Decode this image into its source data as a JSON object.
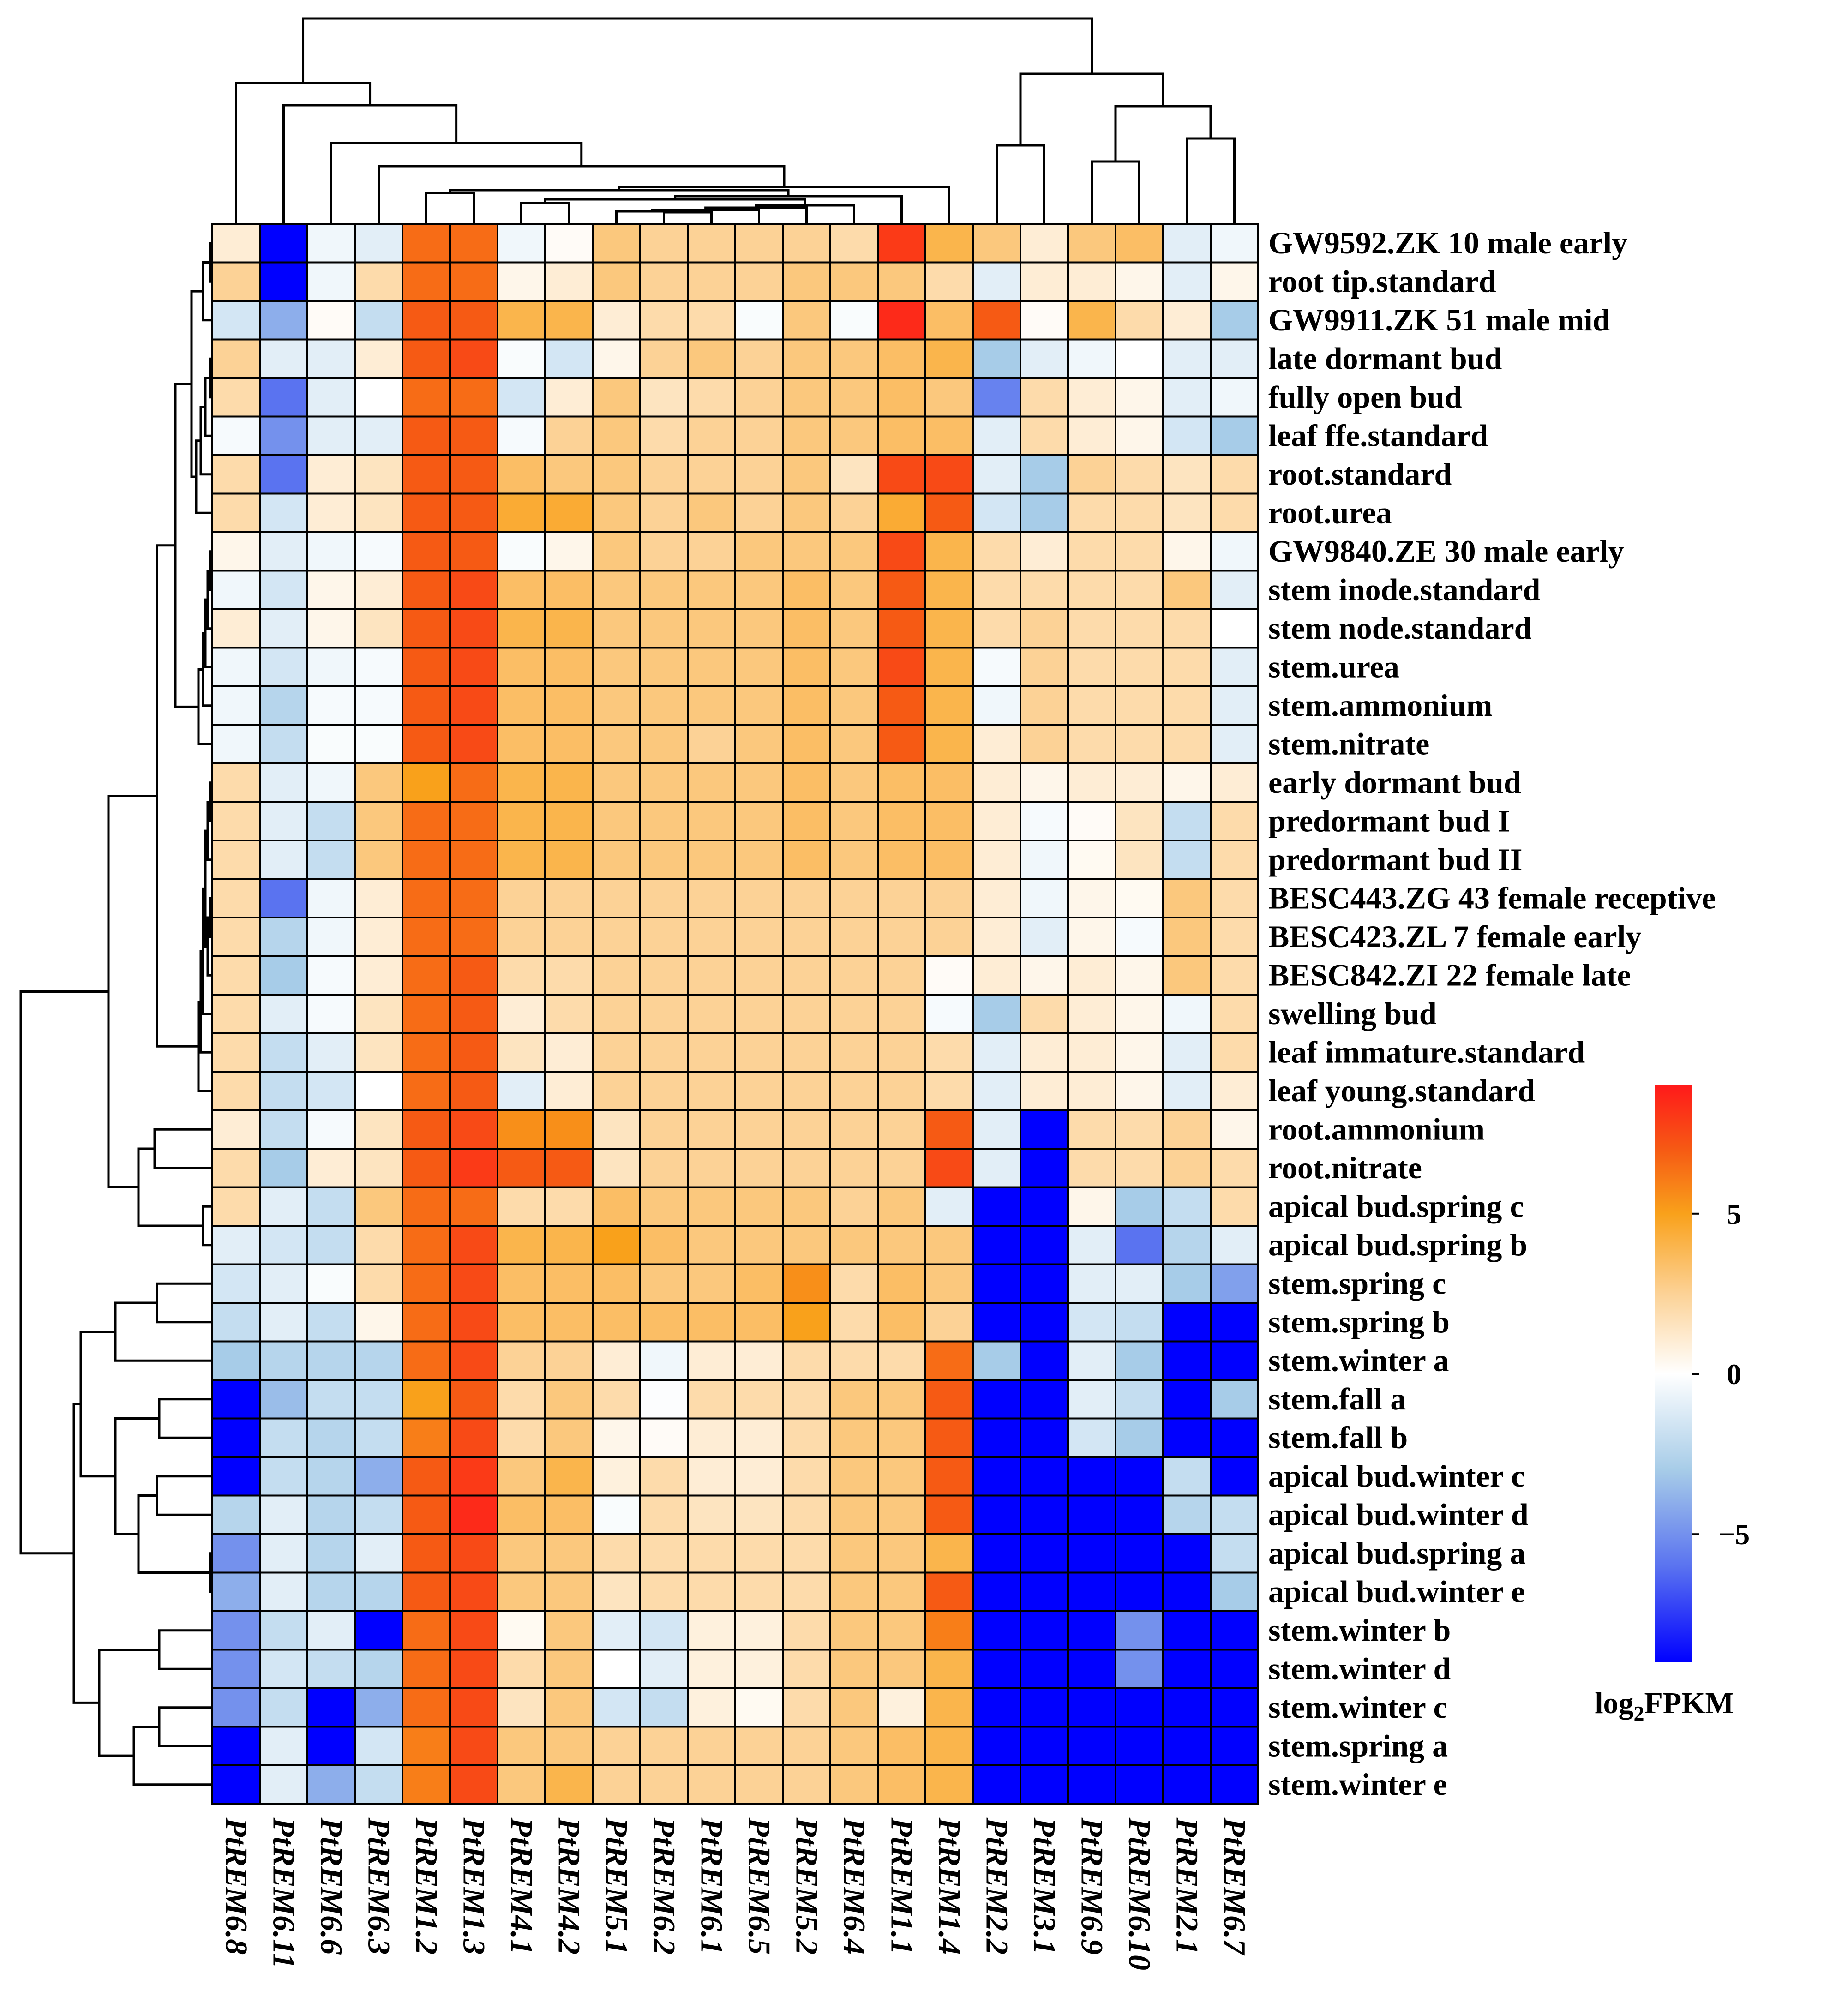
{
  "chart_data": {
    "type": "heatmap",
    "columns": [
      "PtREM6.8",
      "PtREM6.11",
      "PtREM6.6",
      "PtREM6.3",
      "PtREM1.2",
      "PtREM1.3",
      "PtREM4.1",
      "PtREM4.2",
      "PtREM5.1",
      "PtREM6.2",
      "PtREM6.1",
      "PtREM6.5",
      "PtREM5.2",
      "PtREM6.4",
      "PtREM1.1",
      "PtREM1.4",
      "PtREM2.2",
      "PtREM3.1",
      "PtREM6.9",
      "PtREM6.10",
      "PtREM2.1",
      "PtREM6.7"
    ],
    "rows": [
      "GW9592.ZK 10 male early",
      "root tip.standard",
      "GW9911.ZK 51 male mid",
      "late dormant bud",
      "fully open bud",
      "leaf ffe.standard",
      "root.standard",
      "root.urea",
      "GW9840.ZE 30 male early",
      "stem inode.standard",
      "stem node.standard",
      "stem.urea",
      "stem.ammonium",
      "stem.nitrate",
      "early dormant bud",
      "predormant bud I",
      "predormant bud II",
      "BESC443.ZG 43 female receptive",
      "BESC423.ZL 7 female early",
      "BESC842.ZI 22 female late",
      "swelling bud",
      "leaf immature.standard",
      "leaf young.standard",
      "root.ammonium",
      "root.nitrate",
      "apical bud.spring c",
      "apical bud.spring b",
      "stem.spring c",
      "stem.spring b",
      "stem.winter a",
      "stem.fall a",
      "stem.fall b",
      "apical bud.winter c",
      "apical bud.winter d",
      "apical bud.spring a",
      "apical bud.winter e",
      "stem.winter b",
      "stem.winter d",
      "stem.winter c",
      "stem.spring a",
      "stem.winter e"
    ],
    "values": [
      [
        1,
        -9,
        -0.5,
        -1,
        6.5,
        6.5,
        -0.5,
        0.2,
        3,
        2.5,
        2.5,
        2.5,
        2.5,
        2,
        8,
        4,
        3,
        1,
        3,
        3.5,
        -1,
        -0.5
      ],
      [
        2.5,
        -9,
        -0.5,
        2,
        6.5,
        6.5,
        0.5,
        1,
        3,
        2.5,
        2.5,
        2.5,
        3,
        3,
        3,
        2,
        -1,
        1,
        1,
        0.5,
        -1,
        0.5
      ],
      [
        -1.5,
        -4,
        0.2,
        -2,
        7,
        7,
        4,
        4,
        1,
        2,
        2,
        -0.2,
        3,
        -0.2,
        8.5,
        3.5,
        7,
        0.2,
        4,
        2,
        1,
        -3
      ],
      [
        2.5,
        -1,
        -1,
        1,
        7,
        7.5,
        -0.2,
        -1.5,
        0.5,
        2.5,
        3,
        2.5,
        3,
        3,
        3.5,
        4,
        -3,
        -1,
        -0.5,
        0,
        -1,
        -1
      ],
      [
        2,
        -6,
        -1,
        0,
        6.5,
        6.5,
        -1.5,
        1,
        3,
        1.5,
        2,
        2.5,
        3,
        3,
        3.5,
        3,
        -5.5,
        2,
        1,
        0.5,
        -1,
        -0.5
      ],
      [
        -0.3,
        -5,
        -1,
        -1,
        7,
        7,
        -0.3,
        2.5,
        3,
        2,
        2.5,
        2.5,
        3,
        3,
        3.5,
        3.5,
        -1,
        2,
        1,
        0.5,
        -1.5,
        -3
      ],
      [
        2,
        -6,
        1,
        1.5,
        7,
        7,
        3.5,
        3,
        3,
        2.5,
        2.5,
        2.5,
        3,
        1.5,
        7.5,
        7.5,
        -1,
        -3,
        2.5,
        2,
        1.5,
        2
      ],
      [
        2,
        -1.5,
        1,
        1.5,
        7,
        7,
        4.5,
        4.5,
        3,
        2.5,
        3,
        2.5,
        3,
        2.5,
        4.5,
        7,
        -1.5,
        -3,
        2,
        2,
        1.5,
        2
      ],
      [
        0.5,
        -1,
        -0.5,
        -0.3,
        7,
        7,
        -0.2,
        0.5,
        3,
        2.5,
        2.5,
        3,
        3,
        3,
        7.5,
        4,
        2,
        1,
        2,
        2,
        0.5,
        -0.5
      ],
      [
        -0.5,
        -1.5,
        0.5,
        1,
        7,
        7.5,
        3.5,
        3.5,
        3,
        3,
        3,
        3,
        3.5,
        3,
        7,
        4,
        2,
        2,
        2,
        2,
        3,
        -1
      ],
      [
        1,
        -1,
        0.5,
        1.5,
        7,
        7.5,
        4,
        4,
        3,
        3,
        3,
        3,
        3.5,
        3,
        7,
        4,
        2,
        2.5,
        2,
        2,
        2,
        0
      ],
      [
        -0.5,
        -1.5,
        -0.5,
        -0.3,
        7,
        7.5,
        3.5,
        3.5,
        3,
        3,
        3,
        3,
        3.5,
        3,
        7.5,
        4,
        -0.3,
        2.5,
        2,
        2,
        2,
        -1
      ],
      [
        -0.5,
        -2.5,
        -0.3,
        -0.3,
        7,
        7.5,
        3.5,
        3.5,
        3,
        3,
        3,
        3,
        3.5,
        3,
        7,
        4,
        -0.5,
        2.5,
        2,
        2,
        2,
        -1
      ],
      [
        -0.5,
        -2,
        -0.2,
        -0.2,
        7,
        7.5,
        3.5,
        3.5,
        3,
        3,
        2.5,
        3,
        3.5,
        3,
        7,
        4,
        1,
        2.5,
        2,
        2,
        2,
        -1
      ],
      [
        2,
        -1,
        -0.5,
        3,
        5,
        6.5,
        4,
        4,
        3,
        3,
        3,
        3,
        3.5,
        3,
        3.5,
        3.5,
        1,
        0.5,
        1,
        1,
        0.5,
        1
      ],
      [
        2,
        -1,
        -2,
        3,
        6.5,
        6.5,
        4,
        4,
        3,
        3,
        3,
        3,
        3.5,
        3,
        3.5,
        3.5,
        1,
        -0.3,
        0.2,
        1.5,
        -2,
        2
      ],
      [
        2,
        -1,
        -2,
        3,
        6.5,
        6.5,
        4,
        4,
        3,
        3,
        3,
        3,
        3.5,
        3,
        3.5,
        3.5,
        1,
        -0.5,
        0.3,
        1.5,
        -2,
        2
      ],
      [
        2,
        -6,
        -0.5,
        1,
        6.5,
        6.5,
        2.5,
        2.5,
        2.5,
        2.5,
        2.5,
        2.5,
        2.5,
        2.5,
        2.5,
        2.5,
        1,
        -0.5,
        0.5,
        0.3,
        3,
        2
      ],
      [
        2,
        -2.5,
        -0.5,
        1,
        6.5,
        6.5,
        2.5,
        2.5,
        2.5,
        2.5,
        2.5,
        2.5,
        2.5,
        2.5,
        2.5,
        2.5,
        1,
        -1,
        0.5,
        -0.3,
        3,
        2
      ],
      [
        2,
        -3,
        -0.3,
        1,
        6.5,
        7,
        2,
        2,
        2.5,
        2.5,
        2.5,
        2.5,
        2.5,
        2.5,
        2.5,
        0.2,
        1,
        0.5,
        1,
        0.5,
        3,
        2
      ],
      [
        2,
        -1,
        -0.3,
        1.5,
        6.5,
        7,
        1,
        2,
        2.5,
        2.5,
        2.5,
        2.5,
        2.5,
        2.5,
        2.5,
        -0.3,
        -3,
        2,
        1,
        0.5,
        -0.5,
        2
      ],
      [
        2,
        -2,
        -1,
        1.5,
        6.5,
        7,
        1.5,
        1,
        2.5,
        2.5,
        2.5,
        2.5,
        2.5,
        2.5,
        2.5,
        2,
        -1,
        1,
        1,
        0.5,
        -1,
        2
      ],
      [
        2,
        -2,
        -1.5,
        0,
        6.5,
        7,
        -1,
        1,
        2.5,
        2.5,
        2.5,
        2.5,
        2.5,
        2.5,
        2.5,
        2,
        -1,
        1,
        1,
        0.5,
        -1,
        1
      ],
      [
        1,
        -2,
        -0.3,
        1.5,
        7,
        7.5,
        5.5,
        5.5,
        1.5,
        2.5,
        2.5,
        2.5,
        2.5,
        2.5,
        2.5,
        7,
        -1,
        -9,
        2,
        2,
        2.5,
        0.5
      ],
      [
        2,
        -3,
        1,
        1.5,
        7,
        8,
        7,
        7,
        1.5,
        2.5,
        2.5,
        2.5,
        2.5,
        2.5,
        2.5,
        7.5,
        -1,
        -9,
        2,
        2,
        2.5,
        2
      ],
      [
        2,
        -1,
        -2,
        3,
        6.5,
        6.5,
        2,
        2,
        3.5,
        3,
        3,
        3,
        3,
        2.5,
        3,
        -1,
        -9,
        -9,
        0.5,
        -3,
        -2,
        2
      ],
      [
        -1,
        -1.5,
        -2,
        2,
        6.5,
        7.5,
        4,
        4,
        5,
        3.5,
        3,
        3,
        3,
        3,
        3,
        3,
        -9,
        -9,
        -1,
        -6,
        -2.5,
        -1
      ],
      [
        -1.5,
        -1,
        -0.2,
        2,
        6.5,
        7.5,
        3.5,
        3.5,
        3.5,
        3,
        3,
        3.5,
        5.5,
        2,
        3.5,
        3,
        -9,
        -9,
        -1,
        -1,
        -3,
        -4.5
      ],
      [
        -2,
        -1,
        -2,
        0.5,
        6.5,
        7.5,
        3.5,
        3.5,
        3.5,
        3.5,
        3.5,
        3.5,
        5,
        2,
        3.5,
        2.5,
        -9,
        -9,
        -1.5,
        -2,
        -9,
        -9
      ],
      [
        -3,
        -2.5,
        -2.5,
        -2.5,
        6.5,
        7.5,
        2.5,
        2.5,
        1,
        -0.5,
        1,
        1,
        2,
        2,
        2,
        6.5,
        -3,
        -9,
        -1,
        -3,
        -9,
        -9
      ],
      [
        -9,
        -3.5,
        -2,
        -2,
        5,
        7,
        2,
        3,
        2,
        -0.1,
        2,
        2,
        2,
        3,
        3,
        7,
        -9,
        -9,
        -1,
        -2,
        -9,
        -3
      ],
      [
        -9,
        -2,
        -2.5,
        -2,
        6,
        7.5,
        2,
        3,
        0.5,
        0.2,
        1,
        1,
        2,
        3,
        3,
        7,
        -9,
        -9,
        -1.5,
        -3,
        -9,
        -9
      ],
      [
        -9,
        -2,
        -2.5,
        -4,
        7,
        8,
        3,
        4,
        0.8,
        2,
        1,
        1,
        2,
        3,
        3,
        7,
        -9,
        -9,
        -9,
        -9,
        -2,
        -9
      ],
      [
        -2.5,
        -1,
        -2.5,
        -2,
        7,
        8.5,
        3.5,
        3.5,
        -0.2,
        2,
        1.5,
        1.5,
        2,
        3,
        3,
        7,
        -9,
        -9,
        -9,
        -9,
        -2.5,
        -2
      ],
      [
        -5,
        -1,
        -2.5,
        -1,
        7,
        7.5,
        3,
        3,
        2,
        2,
        2,
        2,
        2,
        3,
        3,
        4,
        -9,
        -9,
        -9,
        -9,
        -9,
        -2
      ],
      [
        -4,
        -1,
        -2.5,
        -2.5,
        7,
        7.5,
        3,
        3,
        1.5,
        2,
        2,
        2,
        2,
        3,
        3,
        7,
        -9,
        -9,
        -9,
        -9,
        -9,
        -3
      ],
      [
        -5,
        -2,
        -1,
        -9,
        6.5,
        7.5,
        0.3,
        3,
        -1,
        -1.5,
        0.8,
        0.8,
        2,
        3,
        3,
        6,
        -9,
        -9,
        -9,
        -5,
        -9,
        -9
      ],
      [
        -5,
        -1.5,
        -2,
        -2.5,
        6.5,
        7.5,
        2,
        3,
        0,
        -1,
        0.8,
        0.8,
        2,
        3,
        3,
        4,
        -9,
        -9,
        -9,
        -5,
        -9,
        -9
      ],
      [
        -5,
        -2,
        -9,
        -4,
        6.5,
        7.5,
        1.5,
        3,
        -1.5,
        -2,
        0.8,
        0.3,
        2,
        3,
        0.8,
        4,
        -9,
        -9,
        -9,
        -9,
        -9,
        -9
      ],
      [
        -9,
        -1,
        -9,
        -1.5,
        6,
        7.5,
        3,
        3,
        2.5,
        2.5,
        2.5,
        2.5,
        2.5,
        3,
        3.5,
        4,
        -9,
        -9,
        -9,
        -9,
        -9,
        -9
      ],
      [
        -9,
        -1,
        -4,
        -2,
        6,
        7.5,
        3,
        4,
        2.5,
        2.5,
        2.5,
        2.5,
        2.5,
        3,
        3.5,
        4,
        -9,
        -9,
        -9,
        -9,
        -9,
        -9
      ]
    ],
    "color_scale": {
      "min": -9,
      "max": 9,
      "stops": [
        {
          "value": -9,
          "color": "#0000ff"
        },
        {
          "value": -6,
          "color": "#5a73f0"
        },
        {
          "value": -3,
          "color": "#a7cce8"
        },
        {
          "value": 0,
          "color": "#ffffff"
        },
        {
          "value": 2.5,
          "color": "#fcd296"
        },
        {
          "value": 5,
          "color": "#f9a11b"
        },
        {
          "value": 7,
          "color": "#f65a14"
        },
        {
          "value": 9,
          "color": "#ff1a1a"
        }
      ]
    },
    "legend": {
      "title": "log",
      "title_subscript": "2",
      "title_suffix": "FPKM",
      "ticks": [
        5,
        0,
        -5
      ],
      "tick_labels": [
        "5",
        "0",
        "−5"
      ]
    }
  }
}
